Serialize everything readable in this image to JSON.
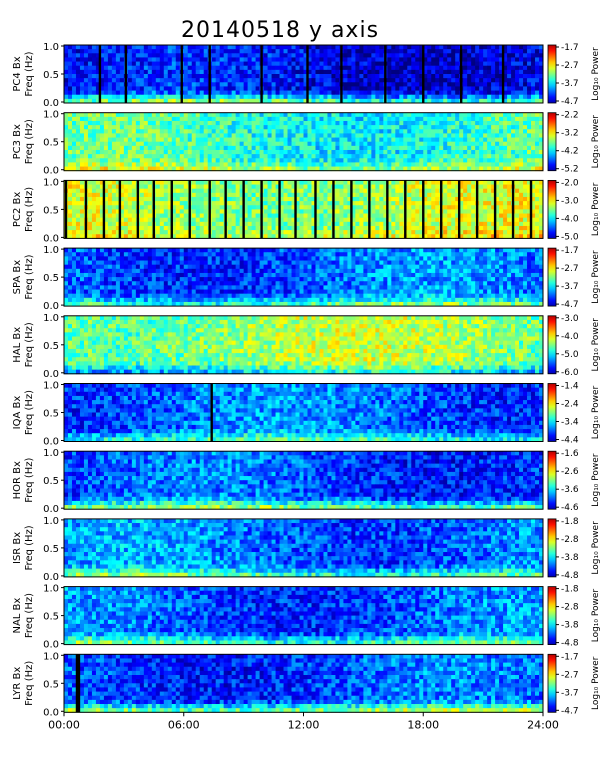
{
  "title": "20140518 y axis",
  "chart_data": {
    "type": "heatmap",
    "title": "20140518 y axis",
    "x_axis": {
      "range": [
        "00:00",
        "24:00"
      ],
      "tick_labels": [
        "00:00",
        "06:00",
        "12:00",
        "18:00",
        "24:00"
      ]
    },
    "y_axis": {
      "range": [
        0.0,
        1.0
      ],
      "tick_labels": [
        "0.0",
        "0.5",
        "1.0"
      ]
    },
    "colorbar_label": "Log₁₀ Power",
    "panels": [
      {
        "station": "PC4",
        "ylabel_line1": "PC4  Bx",
        "ylabel_line2": "Freq (Hz)",
        "cbar_ticks": [
          "-1.7",
          "-2.7",
          "-3.7",
          "-4.7"
        ],
        "cbar_label": "Log₁₀ Power",
        "base_level": 0.12,
        "low_freq_level": 0.45,
        "dropouts": [
          1.8,
          3.1,
          5.9,
          7.3,
          9.9,
          12.2,
          13.9,
          16.1,
          18.0,
          19.9,
          22.0
        ]
      },
      {
        "station": "PC3",
        "ylabel_line1": "PC3  Bx",
        "ylabel_line2": "Freq (Hz)",
        "cbar_ticks": [
          "-2.2",
          "-3.2",
          "-4.2",
          "-5.2"
        ],
        "cbar_label": "Log₁₀ Power",
        "base_level": 0.42,
        "low_freq_level": 0.55,
        "dropouts": []
      },
      {
        "station": "PC2",
        "ylabel_line1": "PC2  Bx",
        "ylabel_line2": "Freq (Hz)",
        "cbar_ticks": [
          "-2.0",
          "-3.0",
          "-4.0",
          "-5.0"
        ],
        "cbar_label": "Log₁₀ Power",
        "base_level": 0.55,
        "low_freq_level": 0.6,
        "dropouts": [
          0.1,
          1.1,
          2.0,
          2.8,
          3.7,
          4.5,
          5.4,
          6.3,
          7.3,
          8.1,
          9.0,
          9.9,
          10.8,
          11.6,
          12.6,
          13.5,
          14.4,
          15.3,
          16.2,
          17.1,
          18.0,
          18.9,
          19.8,
          20.7,
          21.6,
          22.5,
          23.4
        ]
      },
      {
        "station": "SPA",
        "ylabel_line1": "SPA  Bx",
        "ylabel_line2": "Freq (Hz)",
        "cbar_ticks": [
          "-1.7",
          "-2.7",
          "-3.7",
          "-4.7"
        ],
        "cbar_label": "Log₁₀ Power",
        "base_level": 0.22,
        "low_freq_level": 0.45,
        "dropouts": []
      },
      {
        "station": "HAL",
        "ylabel_line1": "HAL  Bx",
        "ylabel_line2": "Freq (Hz)",
        "cbar_ticks": [
          "-3.0",
          "-4.0",
          "-5.0",
          "-6.0"
        ],
        "cbar_label": "Log₁₀ Power",
        "base_level": 0.52,
        "low_freq_level": 0.35,
        "dropouts": []
      },
      {
        "station": "IQA",
        "ylabel_line1": "IQA  Bx",
        "ylabel_line2": "Freq (Hz)",
        "cbar_ticks": [
          "-1.4",
          "-2.4",
          "-3.4",
          "-4.4"
        ],
        "cbar_label": "Log₁₀ Power",
        "base_level": 0.22,
        "low_freq_level": 0.42,
        "dropouts": [
          7.4
        ]
      },
      {
        "station": "HOR",
        "ylabel_line1": "HOR  Bx",
        "ylabel_line2": "Freq (Hz)",
        "cbar_ticks": [
          "-1.6",
          "-2.6",
          "-3.6",
          "-4.6"
        ],
        "cbar_label": "Log₁₀ Power",
        "base_level": 0.2,
        "low_freq_level": 0.48,
        "dropouts": []
      },
      {
        "station": "ISR",
        "ylabel_line1": "ISR  Bx",
        "ylabel_line2": "Freq (Hz)",
        "cbar_ticks": [
          "-1.8",
          "-2.8",
          "-3.8",
          "-4.8"
        ],
        "cbar_label": "Log₁₀ Power",
        "base_level": 0.24,
        "low_freq_level": 0.45,
        "dropouts": []
      },
      {
        "station": "NAL",
        "ylabel_line1": "NAL  Bx",
        "ylabel_line2": "Freq (Hz)",
        "cbar_ticks": [
          "-1.8",
          "-2.8",
          "-3.8",
          "-4.8"
        ],
        "cbar_label": "Log₁₀ Power",
        "base_level": 0.22,
        "low_freq_level": 0.45,
        "dropouts": []
      },
      {
        "station": "LYR",
        "ylabel_line1": "LYR  Bx",
        "ylabel_line2": "Freq (Hz)",
        "cbar_ticks": [
          "-1.7",
          "-2.7",
          "-3.7",
          "-4.7"
        ],
        "cbar_label": "Log₁₀ Power",
        "base_level": 0.2,
        "low_freq_level": 0.5,
        "dropouts": [
          0.65,
          0.75
        ]
      }
    ]
  }
}
